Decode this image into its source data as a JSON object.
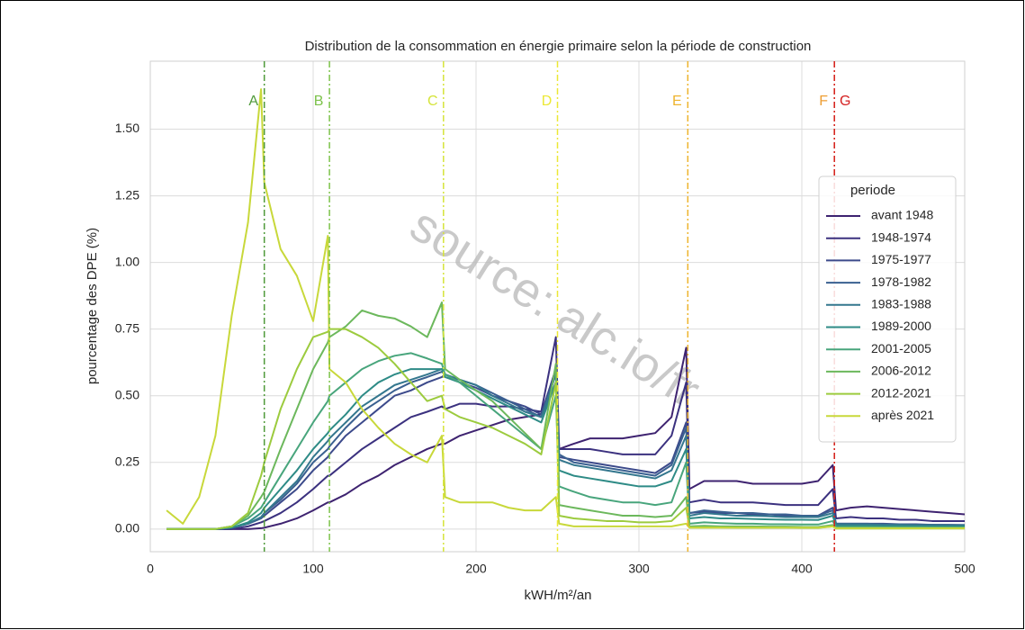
{
  "chart_data": {
    "type": "line",
    "title": "Distribution de la consommation en énergie primaire selon la période de construction",
    "xlabel": "kWH/m²/an",
    "ylabel": "pourcentage des DPE (%)",
    "watermark": "source: alc.io/fr",
    "legend_title": "periode",
    "legend": "right",
    "grid": true,
    "xlim": [
      0,
      500
    ],
    "ylim": [
      -0.085,
      1.755
    ],
    "xticks": [
      0,
      100,
      200,
      300,
      400,
      500
    ],
    "yticks": [
      {
        "value": 0,
        "label": "0.00"
      },
      {
        "value": 0.25,
        "label": "0.25"
      },
      {
        "value": 0.5,
        "label": "0.50"
      },
      {
        "value": 0.75,
        "label": "0.75"
      },
      {
        "value": 1,
        "label": "1.00"
      },
      {
        "value": 1.25,
        "label": "1.25"
      },
      {
        "value": 1.5,
        "label": "1.50"
      }
    ],
    "thresholds": [
      {
        "label": "A",
        "value": 70,
        "color": "#4f9a3a"
      },
      {
        "label": "B",
        "value": 110,
        "color": "#7cc24a"
      },
      {
        "label": "C",
        "value": 180,
        "color": "#d5e43a"
      },
      {
        "label": "D",
        "value": 250,
        "color": "#ece834"
      },
      {
        "label": "E",
        "value": 330,
        "color": "#eeb42e"
      },
      {
        "label": "F",
        "value": 420,
        "color": "#ee9e34"
      },
      {
        "label": "G",
        "value": 420,
        "color": "#d42020"
      }
    ],
    "x": [
      10,
      20,
      30,
      40,
      50,
      60,
      68,
      70,
      80,
      90,
      100,
      109,
      110,
      120,
      130,
      140,
      150,
      160,
      170,
      179,
      181,
      190,
      200,
      210,
      220,
      230,
      240,
      249,
      251,
      260,
      270,
      280,
      290,
      300,
      310,
      320,
      329,
      331,
      340,
      350,
      360,
      370,
      380,
      390,
      400,
      410,
      419,
      421,
      430,
      440,
      450,
      460,
      470,
      480,
      490,
      500
    ],
    "series": [
      {
        "name": "avant 1948",
        "color": "#3e2370",
        "values": [
          0,
          0,
          0,
          0,
          0,
          0,
          0.003,
          0.005,
          0.02,
          0.04,
          0.07,
          0.1,
          0.1,
          0.13,
          0.17,
          0.2,
          0.24,
          0.27,
          0.3,
          0.32,
          0.32,
          0.35,
          0.37,
          0.39,
          0.41,
          0.42,
          0.43,
          0.6,
          0.3,
          0.32,
          0.34,
          0.34,
          0.34,
          0.35,
          0.36,
          0.42,
          0.68,
          0.15,
          0.18,
          0.18,
          0.18,
          0.17,
          0.17,
          0.17,
          0.17,
          0.18,
          0.24,
          0.07,
          0.08,
          0.085,
          0.08,
          0.075,
          0.07,
          0.065,
          0.06,
          0.055
        ]
      },
      {
        "name": "1948-1974",
        "color": "#3b317f",
        "values": [
          0,
          0,
          0,
          0,
          0,
          0.01,
          0.025,
          0.03,
          0.06,
          0.1,
          0.15,
          0.2,
          0.2,
          0.25,
          0.3,
          0.34,
          0.38,
          0.42,
          0.44,
          0.46,
          0.45,
          0.47,
          0.47,
          0.46,
          0.46,
          0.45,
          0.44,
          0.72,
          0.3,
          0.3,
          0.3,
          0.29,
          0.28,
          0.28,
          0.28,
          0.35,
          0.55,
          0.1,
          0.11,
          0.1,
          0.1,
          0.1,
          0.095,
          0.09,
          0.09,
          0.09,
          0.15,
          0.04,
          0.045,
          0.04,
          0.04,
          0.035,
          0.035,
          0.03,
          0.03,
          0.03
        ]
      },
      {
        "name": "1975-1977",
        "color": "#3c4a8b",
        "values": [
          0,
          0,
          0,
          0,
          0.005,
          0.02,
          0.04,
          0.05,
          0.1,
          0.15,
          0.22,
          0.27,
          0.28,
          0.35,
          0.4,
          0.45,
          0.5,
          0.52,
          0.55,
          0.57,
          0.58,
          0.55,
          0.53,
          0.5,
          0.48,
          0.46,
          0.43,
          0.6,
          0.27,
          0.26,
          0.25,
          0.24,
          0.23,
          0.22,
          0.21,
          0.25,
          0.4,
          0.06,
          0.065,
          0.06,
          0.06,
          0.055,
          0.055,
          0.05,
          0.05,
          0.05,
          0.08,
          0.02,
          0.02,
          0.02,
          0.02,
          0.018,
          0.018,
          0.016,
          0.016,
          0.015
        ]
      },
      {
        "name": "1978-1982",
        "color": "#3a6090",
        "values": [
          0,
          0,
          0,
          0,
          0.005,
          0.02,
          0.04,
          0.06,
          0.11,
          0.17,
          0.25,
          0.3,
          0.31,
          0.38,
          0.44,
          0.48,
          0.52,
          0.55,
          0.57,
          0.59,
          0.58,
          0.56,
          0.54,
          0.51,
          0.48,
          0.45,
          0.42,
          0.55,
          0.28,
          0.25,
          0.24,
          0.23,
          0.22,
          0.21,
          0.2,
          0.24,
          0.38,
          0.06,
          0.07,
          0.065,
          0.06,
          0.06,
          0.055,
          0.055,
          0.05,
          0.05,
          0.07,
          0.02,
          0.02,
          0.02,
          0.018,
          0.018,
          0.016,
          0.016,
          0.015,
          0.015
        ]
      },
      {
        "name": "1983-1988",
        "color": "#34778e",
        "values": [
          0,
          0,
          0,
          0,
          0.005,
          0.02,
          0.045,
          0.06,
          0.12,
          0.18,
          0.27,
          0.33,
          0.34,
          0.4,
          0.46,
          0.5,
          0.54,
          0.56,
          0.58,
          0.6,
          0.58,
          0.56,
          0.54,
          0.5,
          0.47,
          0.44,
          0.42,
          0.58,
          0.26,
          0.24,
          0.23,
          0.22,
          0.21,
          0.2,
          0.19,
          0.22,
          0.35,
          0.05,
          0.06,
          0.055,
          0.05,
          0.05,
          0.048,
          0.045,
          0.045,
          0.045,
          0.06,
          0.018,
          0.018,
          0.017,
          0.016,
          0.016,
          0.015,
          0.015,
          0.014,
          0.014
        ]
      },
      {
        "name": "1989-2000",
        "color": "#2e8b86",
        "values": [
          0,
          0,
          0,
          0,
          0.005,
          0.025,
          0.06,
          0.08,
          0.15,
          0.22,
          0.3,
          0.36,
          0.37,
          0.43,
          0.5,
          0.55,
          0.58,
          0.6,
          0.6,
          0.6,
          0.57,
          0.55,
          0.52,
          0.49,
          0.46,
          0.43,
          0.4,
          0.55,
          0.22,
          0.2,
          0.19,
          0.18,
          0.17,
          0.16,
          0.16,
          0.18,
          0.3,
          0.04,
          0.045,
          0.04,
          0.04,
          0.038,
          0.036,
          0.035,
          0.035,
          0.034,
          0.05,
          0.012,
          0.012,
          0.012,
          0.011,
          0.011,
          0.01,
          0.01,
          0.01,
          0.01
        ]
      },
      {
        "name": "2001-2005",
        "color": "#48a57c",
        "values": [
          0,
          0,
          0,
          0,
          0.01,
          0.04,
          0.08,
          0.1,
          0.2,
          0.3,
          0.4,
          0.48,
          0.5,
          0.55,
          0.6,
          0.63,
          0.65,
          0.66,
          0.64,
          0.62,
          0.58,
          0.55,
          0.5,
          0.45,
          0.4,
          0.35,
          0.3,
          0.5,
          0.16,
          0.14,
          0.12,
          0.11,
          0.1,
          0.1,
          0.09,
          0.1,
          0.25,
          0.02,
          0.025,
          0.022,
          0.02,
          0.02,
          0.018,
          0.018,
          0.017,
          0.017,
          0.03,
          0.008,
          0.008,
          0.008,
          0.007,
          0.007,
          0.007,
          0.006,
          0.006,
          0.006
        ]
      },
      {
        "name": "2006-2012",
        "color": "#6cb85c",
        "values": [
          0,
          0,
          0,
          0,
          0.01,
          0.05,
          0.12,
          0.14,
          0.3,
          0.45,
          0.6,
          0.7,
          0.72,
          0.76,
          0.82,
          0.8,
          0.79,
          0.76,
          0.72,
          0.85,
          0.6,
          0.56,
          0.52,
          0.48,
          0.42,
          0.36,
          0.3,
          0.62,
          0.09,
          0.08,
          0.07,
          0.06,
          0.05,
          0.05,
          0.045,
          0.05,
          0.12,
          0.01,
          0.012,
          0.01,
          0.01,
          0.01,
          0.009,
          0.009,
          0.008,
          0.008,
          0.015,
          0.004,
          0.004,
          0.004,
          0.004,
          0.003,
          0.003,
          0.003,
          0.003,
          0.003
        ]
      },
      {
        "name": "2012-2021",
        "color": "#9ccb3e",
        "values": [
          0,
          0,
          0,
          0,
          0.01,
          0.06,
          0.2,
          0.25,
          0.45,
          0.6,
          0.72,
          0.74,
          0.75,
          0.75,
          0.72,
          0.68,
          0.62,
          0.55,
          0.48,
          0.5,
          0.45,
          0.42,
          0.4,
          0.38,
          0.35,
          0.32,
          0.28,
          0.55,
          0.05,
          0.04,
          0.035,
          0.03,
          0.03,
          0.025,
          0.025,
          0.03,
          0.08,
          0.006,
          0.006,
          0.006,
          0.005,
          0.005,
          0.005,
          0.005,
          0.004,
          0.004,
          0.01,
          0.002,
          0.002,
          0.002,
          0.002,
          0.002,
          0.002,
          0.002,
          0.002,
          0.002
        ]
      },
      {
        "name": "après 2021",
        "color": "#c8d83a",
        "values": [
          0.07,
          0.02,
          0.12,
          0.35,
          0.8,
          1.15,
          1.65,
          1.3,
          1.05,
          0.95,
          0.78,
          1.1,
          0.6,
          0.55,
          0.45,
          0.38,
          0.32,
          0.28,
          0.25,
          0.35,
          0.12,
          0.1,
          0.1,
          0.1,
          0.08,
          0.07,
          0.07,
          0.12,
          0.02,
          0.01,
          0.01,
          0.01,
          0.01,
          0.01,
          0.01,
          0.01,
          0.02,
          0.005,
          0.005,
          0.005,
          0.005,
          0.005,
          0.005,
          0.005,
          0.005,
          0.005,
          0.01,
          0.003,
          0.003,
          0.003,
          0.003,
          0.003,
          0.003,
          0.003,
          0.003,
          0.003
        ]
      }
    ]
  }
}
